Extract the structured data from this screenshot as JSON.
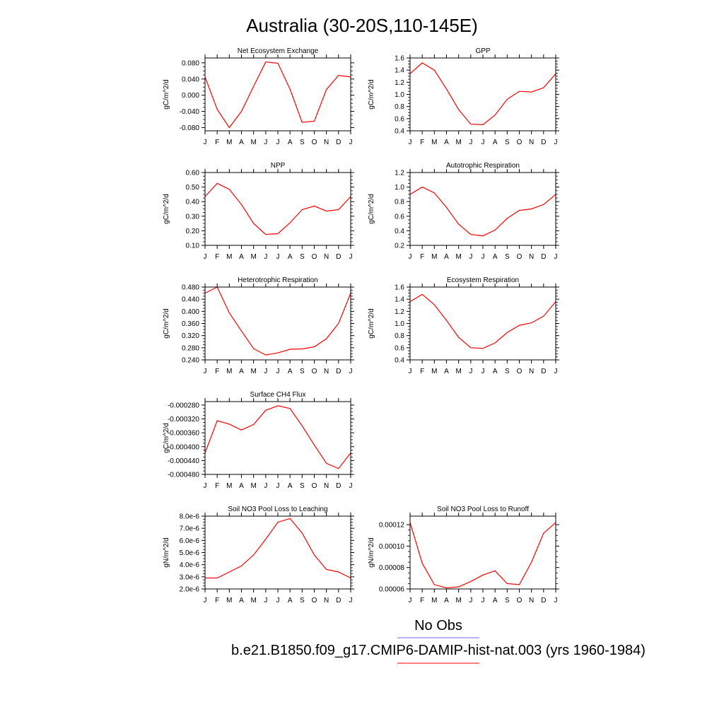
{
  "page": {
    "title": "Australia (30-20S,110-145E)"
  },
  "legend": {
    "obs_label": "No Obs",
    "obs_color": "#6666ff",
    "model_label": "b.e21.B1850.f09_g17.CMIP6-DAMIP-hist-nat.003 (yrs 1960-1984)",
    "model_color": "#ff0000"
  },
  "month_labels": [
    "J",
    "F",
    "M",
    "A",
    "M",
    "J",
    "J",
    "A",
    "S",
    "O",
    "N",
    "D",
    "J"
  ],
  "chart_data": [
    {
      "type": "line",
      "title": "Net Ecosystem Exchange",
      "ylabel": "gC/m^2/d",
      "ylim": [
        -0.088,
        0.092
      ],
      "yticks": [
        -0.08,
        -0.04,
        0.0,
        0.04,
        0.08
      ],
      "ytick_labels": [
        "-0.080",
        "-0.040",
        "0.000",
        "0.040",
        "0.080"
      ],
      "categories": [
        "J",
        "F",
        "M",
        "A",
        "M",
        "J",
        "J",
        "A",
        "S",
        "O",
        "N",
        "D",
        "J"
      ],
      "values": [
        0.045,
        -0.035,
        -0.08,
        -0.04,
        0.022,
        0.082,
        0.079,
        0.015,
        -0.067,
        -0.064,
        0.014,
        0.049,
        0.045
      ]
    },
    {
      "type": "line",
      "title": "GPP",
      "ylabel": "gC/m^2/d",
      "ylim": [
        0.4,
        1.6
      ],
      "yticks": [
        0.4,
        0.6,
        0.8,
        1.0,
        1.2,
        1.4,
        1.6
      ],
      "ytick_labels": [
        "0.4",
        "0.6",
        "0.8",
        "1.0",
        "1.2",
        "1.4",
        "1.6"
      ],
      "categories": [
        "J",
        "F",
        "M",
        "A",
        "M",
        "J",
        "J",
        "A",
        "S",
        "O",
        "N",
        "D",
        "J"
      ],
      "values": [
        1.34,
        1.52,
        1.4,
        1.09,
        0.75,
        0.51,
        0.5,
        0.66,
        0.92,
        1.05,
        1.04,
        1.11,
        1.34
      ]
    },
    {
      "type": "line",
      "title": "NPP",
      "ylabel": "gC/m^2/d",
      "ylim": [
        0.1,
        0.6
      ],
      "yticks": [
        0.1,
        0.2,
        0.3,
        0.4,
        0.5,
        0.6
      ],
      "ytick_labels": [
        "0.10",
        "0.20",
        "0.30",
        "0.40",
        "0.50",
        "0.60"
      ],
      "categories": [
        "J",
        "F",
        "M",
        "A",
        "M",
        "J",
        "J",
        "A",
        "S",
        "O",
        "N",
        "D",
        "J"
      ],
      "values": [
        0.435,
        0.525,
        0.485,
        0.38,
        0.25,
        0.175,
        0.18,
        0.255,
        0.345,
        0.37,
        0.335,
        0.345,
        0.435
      ]
    },
    {
      "type": "line",
      "title": "Autotrophic Respiration",
      "ylabel": "gC/m^2/d",
      "ylim": [
        0.2,
        1.2
      ],
      "yticks": [
        0.2,
        0.4,
        0.6,
        0.8,
        1.0,
        1.2
      ],
      "ytick_labels": [
        "0.2",
        "0.4",
        "0.6",
        "0.8",
        "1.0",
        "1.2"
      ],
      "categories": [
        "J",
        "F",
        "M",
        "A",
        "M",
        "J",
        "J",
        "A",
        "S",
        "O",
        "N",
        "D",
        "J"
      ],
      "values": [
        0.9,
        1.0,
        0.92,
        0.72,
        0.49,
        0.35,
        0.33,
        0.41,
        0.57,
        0.68,
        0.7,
        0.76,
        0.9
      ]
    },
    {
      "type": "line",
      "title": "Heterotrophic Respiration",
      "ylabel": "gC/m^2/d",
      "ylim": [
        0.24,
        0.48
      ],
      "yticks": [
        0.24,
        0.28,
        0.32,
        0.36,
        0.4,
        0.44,
        0.48
      ],
      "ytick_labels": [
        "0.240",
        "0.280",
        "0.320",
        "0.360",
        "0.400",
        "0.440",
        "0.480"
      ],
      "categories": [
        "J",
        "F",
        "M",
        "A",
        "M",
        "J",
        "J",
        "A",
        "S",
        "O",
        "N",
        "D",
        "J"
      ],
      "values": [
        0.46,
        0.48,
        0.395,
        0.335,
        0.277,
        0.256,
        0.263,
        0.275,
        0.276,
        0.283,
        0.31,
        0.36,
        0.46
      ]
    },
    {
      "type": "line",
      "title": "Ecosystem Respiration",
      "ylabel": "gC/m^2/d",
      "ylim": [
        0.4,
        1.6
      ],
      "yticks": [
        0.4,
        0.6,
        0.8,
        1.0,
        1.2,
        1.4,
        1.6
      ],
      "ytick_labels": [
        "0.4",
        "0.6",
        "0.8",
        "1.0",
        "1.2",
        "1.4",
        "1.6"
      ],
      "categories": [
        "J",
        "F",
        "M",
        "A",
        "M",
        "J",
        "J",
        "A",
        "S",
        "O",
        "N",
        "D",
        "J"
      ],
      "values": [
        1.36,
        1.48,
        1.31,
        1.05,
        0.77,
        0.6,
        0.59,
        0.68,
        0.85,
        0.97,
        1.01,
        1.12,
        1.36
      ]
    },
    {
      "type": "line",
      "title": "Surface CH4 Flux",
      "ylabel": "gC/m^2/d",
      "ylim": [
        -0.00048,
        -0.00027
      ],
      "yticks": [
        -0.00048,
        -0.00044,
        -0.0004,
        -0.00036,
        -0.00032,
        -0.00028
      ],
      "ytick_labels": [
        "-0.000480",
        "-0.000440",
        "-0.000400",
        "-0.000360",
        "-0.000320",
        "-0.000280"
      ],
      "categories": [
        "J",
        "F",
        "M",
        "A",
        "M",
        "J",
        "J",
        "A",
        "S",
        "O",
        "N",
        "D",
        "J"
      ],
      "values": [
        -0.000418,
        -0.000325,
        -0.000335,
        -0.000352,
        -0.000336,
        -0.000295,
        -0.000282,
        -0.00029,
        -0.00034,
        -0.000395,
        -0.000448,
        -0.000463,
        -0.000418
      ]
    },
    {
      "type": "line",
      "title": "Soil NO3 Pool Loss to Leaching",
      "ylabel": "gN/m^2/d",
      "ylim": [
        2e-06,
        8e-06
      ],
      "yticks": [
        2e-06,
        3e-06,
        4e-06,
        5e-06,
        6e-06,
        7e-06,
        8e-06
      ],
      "ytick_labels": [
        "2.0e-6",
        "3.0e-6",
        "4.0e-6",
        "5.0e-6",
        "6.0e-6",
        "7.0e-6",
        "8.0e-6"
      ],
      "categories": [
        "J",
        "F",
        "M",
        "A",
        "M",
        "J",
        "J",
        "A",
        "S",
        "O",
        "N",
        "D",
        "J"
      ],
      "values": [
        2.9e-06,
        2.9e-06,
        3.4e-06,
        3.9e-06,
        4.8e-06,
        6.1e-06,
        7.5e-06,
        7.8e-06,
        6.6e-06,
        4.8e-06,
        3.6e-06,
        3.4e-06,
        2.9e-06
      ]
    },
    {
      "type": "line",
      "title": "Soil NO3 Pool Loss to Runoff",
      "ylabel": "gN/m^2/d",
      "ylim": [
        6e-05,
        0.000128
      ],
      "yticks": [
        6e-05,
        8e-05,
        0.0001,
        0.00012
      ],
      "ytick_labels": [
        "0.00006",
        "0.00008",
        "0.00010",
        "0.00012"
      ],
      "categories": [
        "J",
        "F",
        "M",
        "A",
        "M",
        "J",
        "J",
        "A",
        "S",
        "O",
        "N",
        "D",
        "J"
      ],
      "values": [
        0.000122,
        8.4e-05,
        6.4e-05,
        6.1e-05,
        6.2e-05,
        6.7e-05,
        7.3e-05,
        7.7e-05,
        6.5e-05,
        6.4e-05,
        8.5e-05,
        0.000112,
        0.000122
      ]
    }
  ]
}
